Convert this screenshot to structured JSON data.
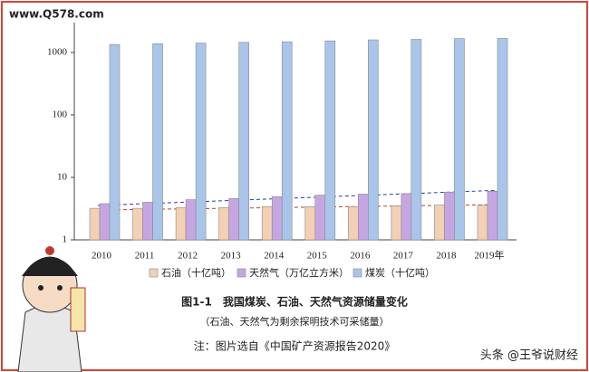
{
  "chart_data": {
    "type": "bar",
    "watermark": "www.Q578.com",
    "categories": [
      "2010",
      "2011",
      "2012",
      "2013",
      "2014",
      "2015",
      "2016",
      "2017",
      "2018",
      "2019年"
    ],
    "series": [
      {
        "name": "石油（十亿吨）",
        "color": "#f3cfb4",
        "values": [
          3.2,
          3.2,
          3.3,
          3.3,
          3.4,
          3.4,
          3.4,
          3.5,
          3.6,
          3.6
        ]
      },
      {
        "name": "天然气（万亿立方米）",
        "color": "#c6a6e2",
        "values": [
          3.8,
          4.0,
          4.4,
          4.6,
          4.9,
          5.2,
          5.4,
          5.5,
          5.8,
          6.0
        ]
      },
      {
        "name": "煤炭（十亿吨）",
        "color": "#a9c5ea",
        "values": [
          1340,
          1380,
          1410,
          1450,
          1480,
          1530,
          1590,
          1620,
          1670,
          1680
        ]
      }
    ],
    "ylim": [
      1,
      3000
    ],
    "yticks": [
      1,
      10,
      100,
      1000
    ],
    "log_y": true,
    "title": "图1-1　我国煤炭、石油、天然气资源储量变化",
    "subtitle": "（石油、天然气为剩余探明技术可采储量）",
    "note": "注：图片选自《中国矿产资源报告2020》",
    "credit": "头条 @王爷说财经"
  }
}
